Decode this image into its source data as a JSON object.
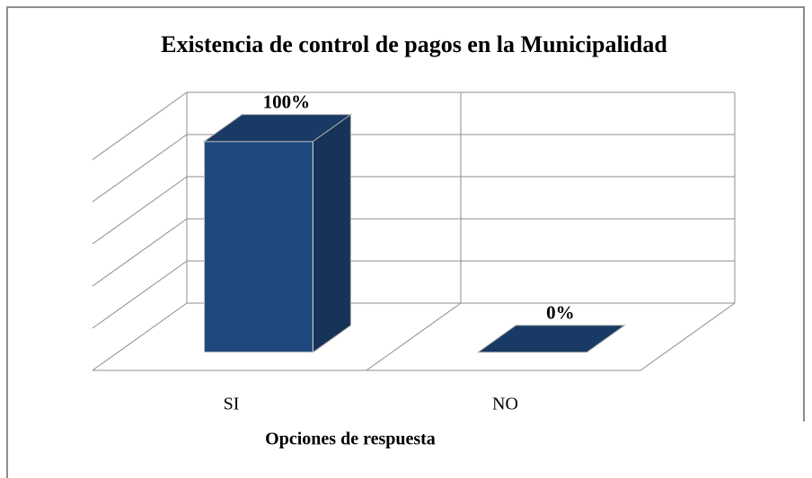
{
  "chart_data": {
    "type": "bar3d",
    "title": "Existencia de control de pagos en la Municipalidad",
    "x_label": "Opciones de respuesta",
    "categories": [
      "SI",
      "NO"
    ],
    "values": [
      100,
      0
    ],
    "value_labels": [
      "100%",
      "0%"
    ],
    "color": "#1f497d",
    "ylim": [
      0,
      100
    ],
    "yticks": [
      0,
      20,
      40,
      60,
      80,
      100
    ],
    "grid": true
  }
}
